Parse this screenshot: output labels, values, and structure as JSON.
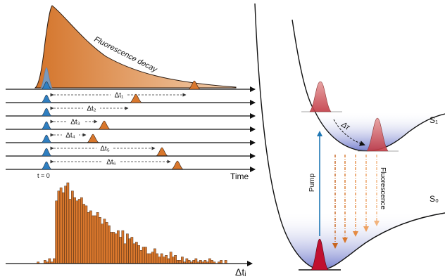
{
  "colors": {
    "fluorescence": "#d9772c",
    "irf": "#2f7fc1",
    "pump": "#1f77b4",
    "excitation_pulse": "#c01030",
    "axis": "#111111",
    "well_fill": "#3c4cb8"
  },
  "decay_panel": {
    "label": "Fluorescence decay",
    "start_label": "t = 0",
    "axis_label": "Time",
    "delays": [
      "Δt₁",
      "Δt₂",
      "Δt₃",
      "Δt₄",
      "Δt₅",
      "Δt₆"
    ]
  },
  "histogram": {
    "axis_label": "Δtᵢ",
    "counts": [
      0,
      0,
      0,
      0,
      0,
      0,
      0,
      0,
      0,
      0,
      1,
      0,
      0,
      2,
      1,
      3,
      1,
      3,
      38,
      44,
      46,
      43,
      47,
      49,
      39,
      44,
      40,
      38,
      39,
      40,
      36,
      35,
      31,
      32,
      29,
      29,
      31,
      28,
      24,
      27,
      25,
      23,
      19,
      19,
      18,
      20,
      16,
      20,
      12,
      18,
      15,
      16,
      12,
      13,
      11,
      8,
      10,
      10,
      6,
      6,
      7,
      9,
      6,
      4,
      6,
      4,
      5,
      3,
      7,
      4,
      5,
      2,
      2,
      4,
      1,
      3,
      2,
      1,
      2,
      3,
      1,
      2,
      1,
      2,
      1,
      3,
      2,
      1,
      0,
      1,
      2,
      0,
      2,
      0,
      0,
      0
    ]
  },
  "energy_diagram": {
    "state_upper": "S₁",
    "state_lower": "S₀",
    "pump_label": "Pump",
    "emission_label": "Fluorescence",
    "relax_label": "Δτ"
  }
}
